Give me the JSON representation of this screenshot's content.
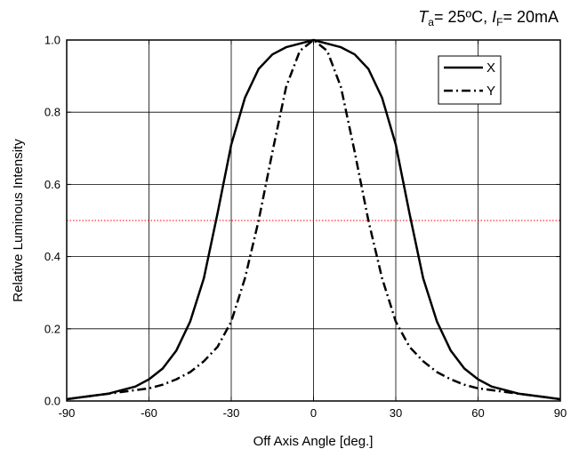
{
  "chart_data": {
    "type": "line",
    "annotation": {
      "ta_symbol": "T",
      "ta_sub": "a",
      "ta_value": "= 25ºC, ",
      "if_symbol": "I",
      "if_sub": "F",
      "if_value": "= 20mA"
    },
    "xlabel": "Off Axis Angle [deg.]",
    "ylabel": "Relative Luminous Intensity",
    "xlim": [
      -90,
      90
    ],
    "ylim": [
      0.0,
      1.0
    ],
    "xticks": [
      -90,
      -60,
      -30,
      0,
      30,
      60,
      90
    ],
    "yticks": [
      0.0,
      0.2,
      0.4,
      0.6,
      0.8,
      1.0
    ],
    "xtick_labels": [
      "-90",
      "-60",
      "-30",
      "0",
      "30",
      "60",
      "90"
    ],
    "ytick_labels": [
      "0.0",
      "0.2",
      "0.4",
      "0.6",
      "0.8",
      "1.0"
    ],
    "grid": true,
    "legend_position": "top-right",
    "reference_line": {
      "y": 0.5,
      "color": "#ff0000",
      "style": "dotted"
    },
    "series": [
      {
        "name": "X",
        "style": "solid",
        "color": "#000000",
        "x": [
          -90,
          -85,
          -80,
          -75,
          -70,
          -65,
          -60,
          -55,
          -50,
          -45,
          -40,
          -35,
          -30,
          -25,
          -20,
          -15,
          -10,
          -5,
          0,
          5,
          10,
          15,
          20,
          25,
          30,
          35,
          40,
          45,
          50,
          55,
          60,
          65,
          70,
          75,
          80,
          85,
          90
        ],
        "y": [
          0.005,
          0.01,
          0.015,
          0.02,
          0.03,
          0.04,
          0.06,
          0.09,
          0.14,
          0.22,
          0.34,
          0.52,
          0.71,
          0.84,
          0.92,
          0.96,
          0.98,
          0.99,
          1.0,
          0.99,
          0.98,
          0.96,
          0.92,
          0.84,
          0.71,
          0.52,
          0.34,
          0.22,
          0.14,
          0.09,
          0.06,
          0.04,
          0.03,
          0.02,
          0.015,
          0.01,
          0.005
        ]
      },
      {
        "name": "Y",
        "style": "dashdot",
        "color": "#000000",
        "x": [
          -90,
          -85,
          -80,
          -75,
          -70,
          -65,
          -60,
          -55,
          -50,
          -45,
          -40,
          -35,
          -30,
          -25,
          -20,
          -15,
          -10,
          -5,
          0,
          5,
          10,
          15,
          20,
          25,
          30,
          35,
          40,
          45,
          50,
          55,
          60,
          65,
          70,
          75,
          80,
          85,
          90
        ],
        "y": [
          0.005,
          0.01,
          0.015,
          0.02,
          0.025,
          0.03,
          0.035,
          0.045,
          0.06,
          0.08,
          0.11,
          0.15,
          0.22,
          0.34,
          0.5,
          0.69,
          0.87,
          0.97,
          1.0,
          0.97,
          0.87,
          0.69,
          0.5,
          0.34,
          0.22,
          0.15,
          0.11,
          0.08,
          0.06,
          0.045,
          0.035,
          0.03,
          0.025,
          0.02,
          0.015,
          0.01,
          0.005
        ]
      }
    ]
  }
}
